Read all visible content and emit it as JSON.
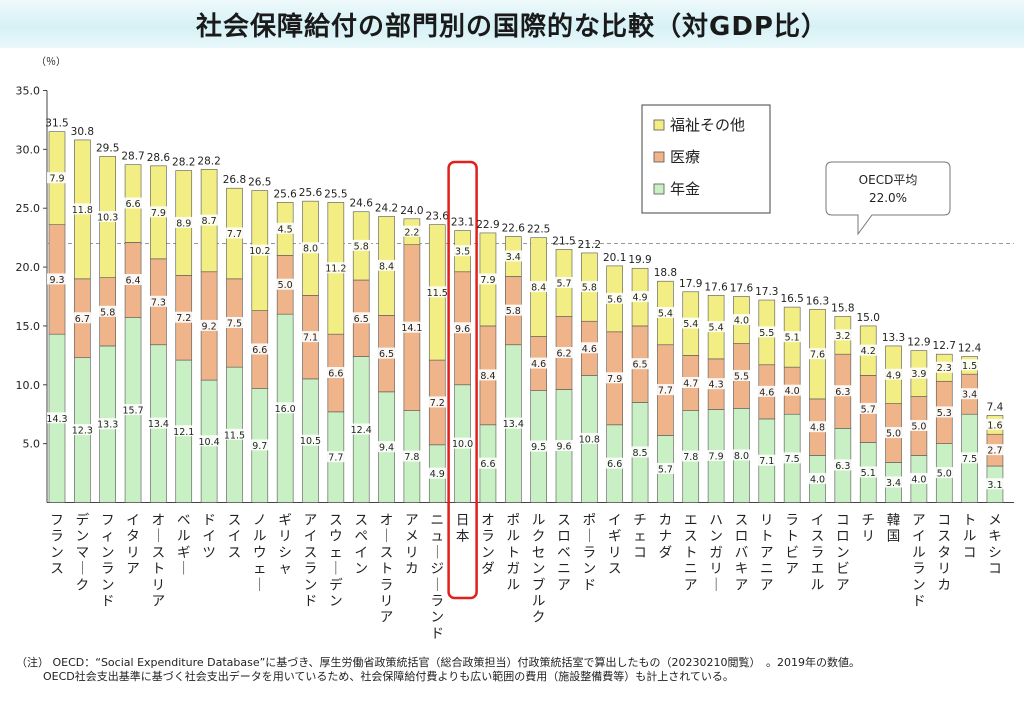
{
  "title": "社会保障給付の部門別の国際的な比較（対GDP比）",
  "unit_label": "（％）",
  "colors": {
    "pension": "#c9f0c4",
    "medical": "#f0b48a",
    "welfare": "#f2ee84",
    "highlight": "#e0201b",
    "oecd_line": "#999999"
  },
  "chart_data": {
    "type": "bar",
    "stacked": true,
    "ylim": [
      0,
      35
    ],
    "yticks": [
      "5.0",
      "10.0",
      "15.0",
      "20.0",
      "25.0",
      "30.0",
      "35.0"
    ],
    "ytick_values": [
      5,
      10,
      15,
      20,
      25,
      30,
      35
    ],
    "grid": false,
    "legend_position": "top-right",
    "highlight_category": "日本",
    "categories": [
      "フランス",
      "デンマーク",
      "フィンランド",
      "イタリア",
      "オーストリア",
      "ベルギー",
      "ドイツ",
      "スイス",
      "ノルウェー",
      "ギリシャ",
      "アイスランド",
      "スウェーデン",
      "スペイン",
      "オーストラリア",
      "アメリカ",
      "ニュージーランド",
      "日本",
      "オランダ",
      "ポルトガル",
      "ルクセンブルク",
      "スロベニア",
      "ポーランド",
      "イギリス",
      "チェコ",
      "カナダ",
      "エストニア",
      "ハンガリー",
      "スロバキア",
      "リトアニア",
      "ラトビア",
      "イスラエル",
      "コロンビア",
      "チリ",
      "韓国",
      "アイルランド",
      "コスタリカ",
      "トルコ",
      "メキシコ"
    ],
    "series": [
      {
        "name": "年金",
        "key": "pension",
        "values": [
          14.3,
          12.3,
          13.3,
          15.7,
          13.4,
          12.1,
          10.4,
          11.5,
          9.7,
          16.0,
          10.5,
          7.7,
          12.4,
          9.4,
          7.8,
          4.9,
          10.0,
          6.6,
          13.4,
          9.5,
          9.6,
          10.8,
          6.6,
          8.5,
          5.7,
          7.8,
          7.9,
          8.0,
          7.1,
          7.5,
          4.0,
          6.3,
          5.1,
          3.4,
          4.0,
          5.0,
          7.5,
          3.1
        ]
      },
      {
        "name": "医療",
        "key": "medical",
        "values": [
          9.3,
          6.7,
          5.8,
          6.4,
          7.3,
          7.2,
          9.2,
          7.5,
          6.6,
          5.0,
          7.1,
          6.6,
          6.5,
          6.5,
          14.1,
          7.2,
          9.6,
          8.4,
          5.8,
          4.6,
          6.2,
          4.6,
          7.9,
          6.5,
          7.7,
          4.7,
          4.3,
          5.5,
          4.6,
          4.0,
          4.8,
          6.3,
          5.7,
          5.0,
          5.0,
          5.3,
          3.4,
          2.7
        ]
      },
      {
        "name": "福祉その他",
        "key": "welfare",
        "values": [
          7.9,
          11.8,
          10.3,
          6.6,
          7.9,
          8.9,
          8.7,
          7.7,
          10.2,
          4.5,
          8.0,
          11.2,
          5.8,
          8.4,
          2.2,
          11.5,
          3.5,
          7.9,
          3.4,
          8.4,
          5.7,
          5.8,
          5.6,
          4.9,
          5.4,
          5.4,
          5.4,
          4.0,
          5.5,
          5.1,
          7.6,
          3.2,
          4.2,
          4.9,
          3.9,
          2.3,
          1.5,
          1.6
        ]
      }
    ],
    "totals": [
      "31.5",
      "30.8",
      "29.5",
      "28.7",
      "28.6",
      "28.2",
      "28.2",
      "26.8",
      "26.5",
      "25.6",
      "25.6",
      "25.5",
      "24.6",
      "24.2",
      "24.0",
      "23.6",
      "23.1",
      "22.9",
      "22.6",
      "22.5",
      "21.5",
      "21.2",
      "20.1",
      "19.9",
      "18.8",
      "17.9",
      "17.6",
      "17.6",
      "17.3",
      "16.5",
      "16.3",
      "15.8",
      "15.0",
      "13.3",
      "12.9",
      "12.7",
      "12.4",
      "7.4"
    ],
    "segment_labels": {
      "pension": [
        "14.3",
        "12.3",
        "13.3",
        "15.7",
        "13.4",
        "12.1",
        "10.4",
        "11.5",
        "9.7",
        "16.0",
        "10.5",
        "7.7",
        "12.4",
        "9.4",
        "7.8",
        "4.9",
        "10.0",
        "6.6",
        "13.4",
        "9.5",
        "9.6",
        "10.8",
        "6.6",
        "8.5",
        "5.7",
        "7.8",
        "7.9",
        "8.0",
        "7.1",
        "7.5",
        "4.0",
        "6.3",
        "5.1",
        "3.4",
        "4.0",
        "5.0",
        "7.5",
        "3.1"
      ],
      "medical": [
        "9.3",
        "6.7",
        "5.8",
        "6.4",
        "7.3",
        "7.2",
        "9.2",
        "7.5",
        "6.6",
        "5.0",
        "7.1",
        "6.6",
        "6.5",
        "6.5",
        "14.1",
        "7.2",
        "9.6",
        "8.4",
        "5.8",
        "4.6",
        "6.2",
        "4.6",
        "7.9",
        "6.5",
        "7.7",
        "4.7",
        "4.3",
        "5.5",
        "4.6",
        "4.0",
        "4.8",
        "6.3",
        "5.7",
        "5.0",
        "5.0",
        "5.3",
        "3.4",
        "2.7"
      ],
      "welfare": [
        "7.9",
        "11.8",
        "10.3",
        "6.6",
        "7.9",
        "8.9",
        "8.7",
        "7.7",
        "10.2",
        "4.5",
        "8.0",
        "11.2",
        "5.8",
        "8.4",
        "2.2",
        "11.5",
        "3.5",
        "7.9",
        "3.4",
        "8.4",
        "5.7",
        "5.8",
        "5.6",
        "4.9",
        "5.4",
        "5.4",
        "5.4",
        "4.0",
        "5.5",
        "5.1",
        "7.6",
        "3.2",
        "4.2",
        "4.9",
        "3.9",
        "2.3",
        "1.5",
        "1.6"
      ]
    },
    "oecd_average": {
      "label": "OECD平均",
      "value": 22.0,
      "value_label": "22.0%"
    }
  },
  "legend": [
    {
      "key": "welfare",
      "label": "福祉その他"
    },
    {
      "key": "medical",
      "label": "医療"
    },
    {
      "key": "pension",
      "label": "年金"
    }
  ],
  "notes": {
    "line1": "（注） OECD：“Social Expenditure Database”に基づき、厚生労働省政策統括官（総合政策担当）付政策統括室で算出したもの（20230210閲覧）　。2019年の数値。",
    "line2": "OECD社会支出基準に基づく社会支出データを用いているため、社会保障給付費よりも広い範囲の費用（施設整備費等）も計上されている。"
  }
}
